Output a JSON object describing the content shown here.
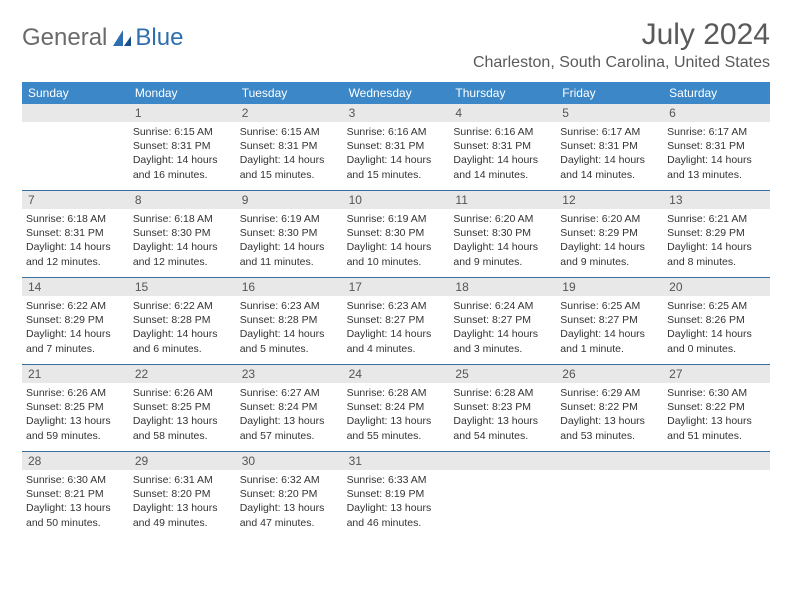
{
  "logo": {
    "text1": "General",
    "text2": "Blue"
  },
  "title": "July 2024",
  "location": "Charleston, South Carolina, United States",
  "colors": {
    "header_bg": "#3b87c8",
    "header_text": "#ffffff",
    "daynum_bg": "#e8e8e8",
    "rule": "#3b6fa0",
    "text": "#333333",
    "title_text": "#5a5a5a"
  },
  "weekdays": [
    "Sunday",
    "Monday",
    "Tuesday",
    "Wednesday",
    "Thursday",
    "Friday",
    "Saturday"
  ],
  "weeks": [
    [
      null,
      {
        "d": "1",
        "sr": "Sunrise: 6:15 AM",
        "ss": "Sunset: 8:31 PM",
        "dl1": "Daylight: 14 hours",
        "dl2": "and 16 minutes."
      },
      {
        "d": "2",
        "sr": "Sunrise: 6:15 AM",
        "ss": "Sunset: 8:31 PM",
        "dl1": "Daylight: 14 hours",
        "dl2": "and 15 minutes."
      },
      {
        "d": "3",
        "sr": "Sunrise: 6:16 AM",
        "ss": "Sunset: 8:31 PM",
        "dl1": "Daylight: 14 hours",
        "dl2": "and 15 minutes."
      },
      {
        "d": "4",
        "sr": "Sunrise: 6:16 AM",
        "ss": "Sunset: 8:31 PM",
        "dl1": "Daylight: 14 hours",
        "dl2": "and 14 minutes."
      },
      {
        "d": "5",
        "sr": "Sunrise: 6:17 AM",
        "ss": "Sunset: 8:31 PM",
        "dl1": "Daylight: 14 hours",
        "dl2": "and 14 minutes."
      },
      {
        "d": "6",
        "sr": "Sunrise: 6:17 AM",
        "ss": "Sunset: 8:31 PM",
        "dl1": "Daylight: 14 hours",
        "dl2": "and 13 minutes."
      }
    ],
    [
      {
        "d": "7",
        "sr": "Sunrise: 6:18 AM",
        "ss": "Sunset: 8:31 PM",
        "dl1": "Daylight: 14 hours",
        "dl2": "and 12 minutes."
      },
      {
        "d": "8",
        "sr": "Sunrise: 6:18 AM",
        "ss": "Sunset: 8:30 PM",
        "dl1": "Daylight: 14 hours",
        "dl2": "and 12 minutes."
      },
      {
        "d": "9",
        "sr": "Sunrise: 6:19 AM",
        "ss": "Sunset: 8:30 PM",
        "dl1": "Daylight: 14 hours",
        "dl2": "and 11 minutes."
      },
      {
        "d": "10",
        "sr": "Sunrise: 6:19 AM",
        "ss": "Sunset: 8:30 PM",
        "dl1": "Daylight: 14 hours",
        "dl2": "and 10 minutes."
      },
      {
        "d": "11",
        "sr": "Sunrise: 6:20 AM",
        "ss": "Sunset: 8:30 PM",
        "dl1": "Daylight: 14 hours",
        "dl2": "and 9 minutes."
      },
      {
        "d": "12",
        "sr": "Sunrise: 6:20 AM",
        "ss": "Sunset: 8:29 PM",
        "dl1": "Daylight: 14 hours",
        "dl2": "and 9 minutes."
      },
      {
        "d": "13",
        "sr": "Sunrise: 6:21 AM",
        "ss": "Sunset: 8:29 PM",
        "dl1": "Daylight: 14 hours",
        "dl2": "and 8 minutes."
      }
    ],
    [
      {
        "d": "14",
        "sr": "Sunrise: 6:22 AM",
        "ss": "Sunset: 8:29 PM",
        "dl1": "Daylight: 14 hours",
        "dl2": "and 7 minutes."
      },
      {
        "d": "15",
        "sr": "Sunrise: 6:22 AM",
        "ss": "Sunset: 8:28 PM",
        "dl1": "Daylight: 14 hours",
        "dl2": "and 6 minutes."
      },
      {
        "d": "16",
        "sr": "Sunrise: 6:23 AM",
        "ss": "Sunset: 8:28 PM",
        "dl1": "Daylight: 14 hours",
        "dl2": "and 5 minutes."
      },
      {
        "d": "17",
        "sr": "Sunrise: 6:23 AM",
        "ss": "Sunset: 8:27 PM",
        "dl1": "Daylight: 14 hours",
        "dl2": "and 4 minutes."
      },
      {
        "d": "18",
        "sr": "Sunrise: 6:24 AM",
        "ss": "Sunset: 8:27 PM",
        "dl1": "Daylight: 14 hours",
        "dl2": "and 3 minutes."
      },
      {
        "d": "19",
        "sr": "Sunrise: 6:25 AM",
        "ss": "Sunset: 8:27 PM",
        "dl1": "Daylight: 14 hours",
        "dl2": "and 1 minute."
      },
      {
        "d": "20",
        "sr": "Sunrise: 6:25 AM",
        "ss": "Sunset: 8:26 PM",
        "dl1": "Daylight: 14 hours",
        "dl2": "and 0 minutes."
      }
    ],
    [
      {
        "d": "21",
        "sr": "Sunrise: 6:26 AM",
        "ss": "Sunset: 8:25 PM",
        "dl1": "Daylight: 13 hours",
        "dl2": "and 59 minutes."
      },
      {
        "d": "22",
        "sr": "Sunrise: 6:26 AM",
        "ss": "Sunset: 8:25 PM",
        "dl1": "Daylight: 13 hours",
        "dl2": "and 58 minutes."
      },
      {
        "d": "23",
        "sr": "Sunrise: 6:27 AM",
        "ss": "Sunset: 8:24 PM",
        "dl1": "Daylight: 13 hours",
        "dl2": "and 57 minutes."
      },
      {
        "d": "24",
        "sr": "Sunrise: 6:28 AM",
        "ss": "Sunset: 8:24 PM",
        "dl1": "Daylight: 13 hours",
        "dl2": "and 55 minutes."
      },
      {
        "d": "25",
        "sr": "Sunrise: 6:28 AM",
        "ss": "Sunset: 8:23 PM",
        "dl1": "Daylight: 13 hours",
        "dl2": "and 54 minutes."
      },
      {
        "d": "26",
        "sr": "Sunrise: 6:29 AM",
        "ss": "Sunset: 8:22 PM",
        "dl1": "Daylight: 13 hours",
        "dl2": "and 53 minutes."
      },
      {
        "d": "27",
        "sr": "Sunrise: 6:30 AM",
        "ss": "Sunset: 8:22 PM",
        "dl1": "Daylight: 13 hours",
        "dl2": "and 51 minutes."
      }
    ],
    [
      {
        "d": "28",
        "sr": "Sunrise: 6:30 AM",
        "ss": "Sunset: 8:21 PM",
        "dl1": "Daylight: 13 hours",
        "dl2": "and 50 minutes."
      },
      {
        "d": "29",
        "sr": "Sunrise: 6:31 AM",
        "ss": "Sunset: 8:20 PM",
        "dl1": "Daylight: 13 hours",
        "dl2": "and 49 minutes."
      },
      {
        "d": "30",
        "sr": "Sunrise: 6:32 AM",
        "ss": "Sunset: 8:20 PM",
        "dl1": "Daylight: 13 hours",
        "dl2": "and 47 minutes."
      },
      {
        "d": "31",
        "sr": "Sunrise: 6:33 AM",
        "ss": "Sunset: 8:19 PM",
        "dl1": "Daylight: 13 hours",
        "dl2": "and 46 minutes."
      },
      null,
      null,
      null
    ]
  ]
}
